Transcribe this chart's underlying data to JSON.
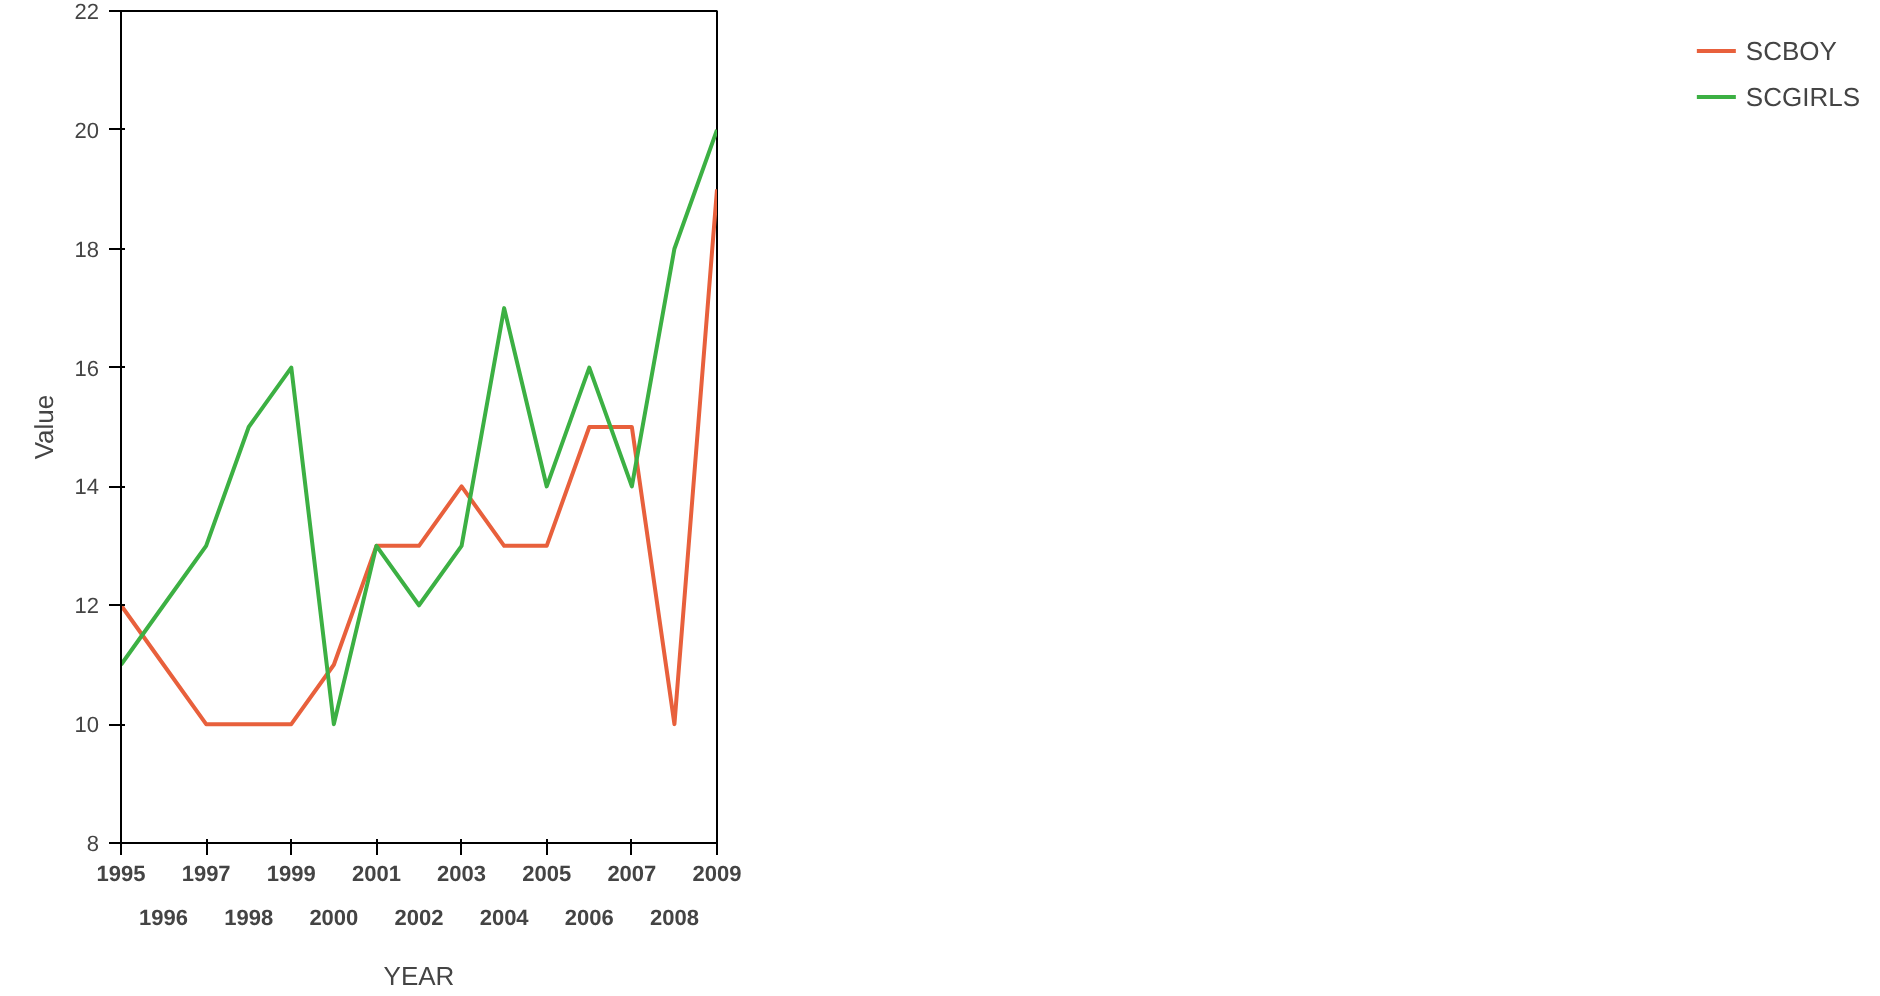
{
  "chart_data": {
    "type": "line",
    "xlabel": "YEAR",
    "ylabel": "Value",
    "categories": [
      "1995",
      "1996",
      "1997",
      "1998",
      "1999",
      "2000",
      "2001",
      "2002",
      "2003",
      "2004",
      "2005",
      "2006",
      "2007",
      "2008",
      "2009"
    ],
    "series": [
      {
        "name": "SCBOY",
        "color": "#e8603c",
        "values": [
          12,
          11,
          10,
          10,
          10,
          11,
          13,
          13,
          14,
          13,
          13,
          15,
          15,
          10,
          19
        ]
      },
      {
        "name": "SCGIRLS",
        "color": "#3cb043",
        "values": [
          11,
          12,
          13,
          15,
          16,
          10,
          13,
          12,
          13,
          17,
          14,
          16,
          14,
          18,
          20
        ]
      }
    ],
    "ylim": [
      8,
      22
    ],
    "yticks": [
      8,
      10,
      12,
      14,
      16,
      18,
      20,
      22
    ],
    "grid": false,
    "legend": "right",
    "marker": "none",
    "line_style": "solid"
  }
}
